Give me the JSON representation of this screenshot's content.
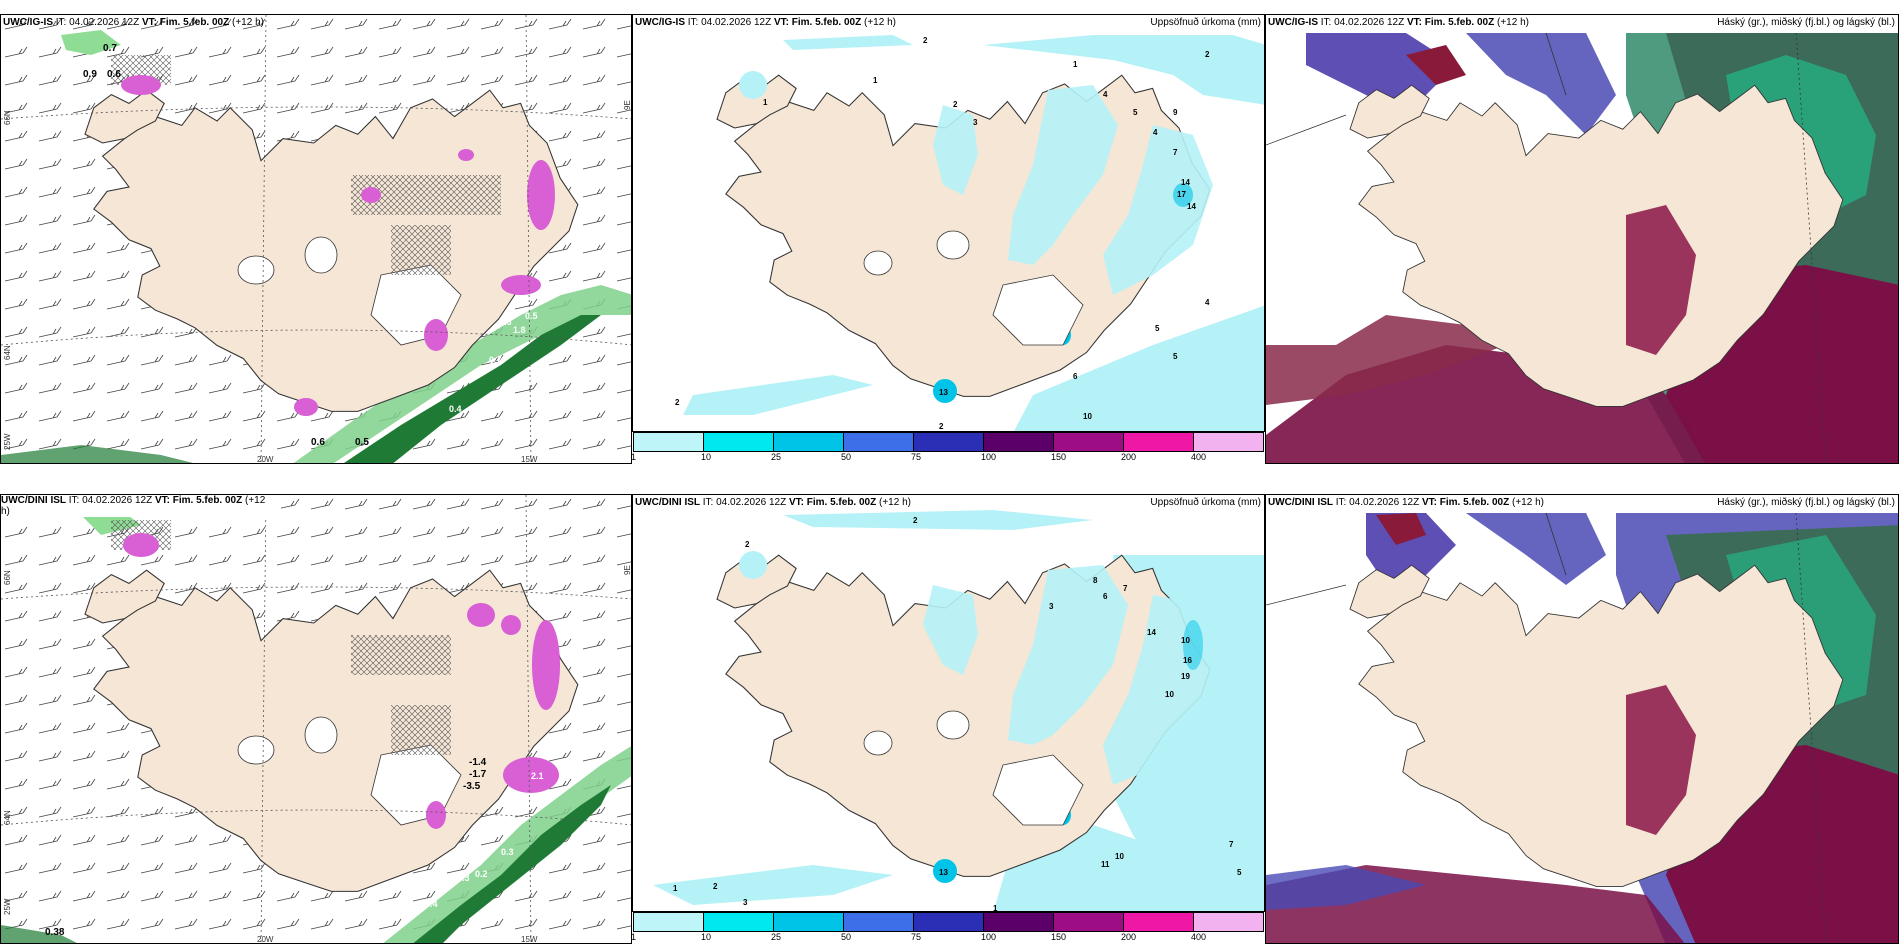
{
  "panels": {
    "top_left": {
      "model": "UWC/IG-IS",
      "it_label": "IT:",
      "it_value": "04.02.2026 12Z",
      "vt_label": "VT:",
      "vt_value": "Fim. 5.feb. 00Z",
      "lead": "(+12 h)"
    },
    "top_mid": {
      "model": "UWC/IG-IS",
      "it_label": "IT:",
      "it_value": "04.02.2026 12Z",
      "vt_label": "VT:",
      "vt_value": "Fim. 5.feb. 00Z",
      "lead": "(+12 h)",
      "field": "Uppsöfnuð úrkoma (mm)"
    },
    "top_right": {
      "model": "UWC/IG-IS",
      "it_label": "IT:",
      "it_value": "04.02.2026 12Z",
      "vt_label": "VT:",
      "vt_value": "Fim. 5.feb. 00Z",
      "lead": "(+12 h)",
      "field": "Háský (gr.), miðský (fj.bl.) og lágský (bl.)"
    },
    "bot_left": {
      "model": "UWC/DINI ISL",
      "it_label": "IT:",
      "it_value": "04.02.2026 12Z",
      "vt_label": "VT:",
      "vt_value": "Fim. 5.feb. 00Z",
      "lead": "(+12",
      "lead2": "h)"
    },
    "bot_mid": {
      "model": "UWC/DINI ISL",
      "it_label": "IT:",
      "it_value": "04.02.2026 12Z",
      "vt_label": "VT:",
      "vt_value": "Fim. 5.feb. 00Z",
      "lead": "(+12 h)",
      "field": "Uppsöfnuð úrkoma (mm)"
    },
    "bot_right": {
      "model": "UWC/DINI ISL",
      "it_label": "IT:",
      "it_value": "04.02.2026 12Z",
      "vt_label": "VT:",
      "vt_value": "Fim. 5.feb. 00Z",
      "lead": "(+12 h)",
      "field": "Háský (gr.), miðský (fj.bl.) og lágský (bl.)"
    }
  },
  "axes": {
    "lon_20": "20W",
    "lon_15": "15W",
    "lat_66": "66N",
    "lat_64": "64N",
    "lat_25": "25W",
    "lon_9": "9E"
  },
  "colorbar": {
    "ticks": [
      "1",
      "10",
      "25",
      "50",
      "75",
      "100",
      "150",
      "200",
      "400"
    ],
    "colors": [
      "#bdf5f8",
      "#00e8ef",
      "#00c3e8",
      "#3c6fe8",
      "#2b2fb5",
      "#5a0068",
      "#9d0d86",
      "#ef18a6",
      "#f2b2f0"
    ]
  },
  "top_left_values": [
    "0.7",
    "0.9",
    "0.6",
    "0.6",
    "0.5",
    "0.4",
    "0.7",
    "0.6",
    "1.8",
    "0.5"
  ],
  "bot_left_values": [
    "-1.4",
    "-1.7",
    "-3.5",
    "2.1",
    "0.3",
    "0.2",
    "0.3",
    "0.2",
    "0.4",
    "0.38"
  ],
  "top_mid_values": [
    "2",
    "2",
    "1",
    "1",
    "1",
    "2",
    "3",
    "4",
    "5",
    "4",
    "9",
    "7",
    "14",
    "17",
    "14",
    "4",
    "5",
    "5",
    "6",
    "10",
    "2",
    "2",
    "13"
  ],
  "bot_mid_values": [
    "2",
    "2",
    "3",
    "8",
    "6",
    "7",
    "14",
    "10",
    "16",
    "19",
    "10",
    "11",
    "10",
    "7",
    "5",
    "1",
    "2",
    "3",
    "1",
    "13"
  ],
  "colors": {
    "land": "#f5e6d6",
    "coast": "#3a3a3a",
    "precip": "#b5f2f7",
    "snow_green": "#2e9c4a",
    "snow_pink": "#d85fd4"
  }
}
